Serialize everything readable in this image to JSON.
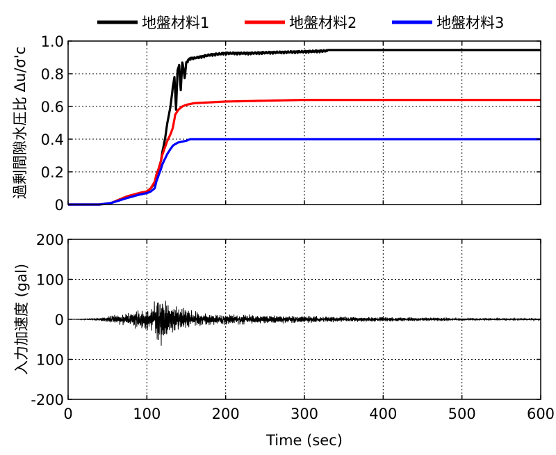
{
  "chart_data": [
    {
      "type": "line",
      "title": "",
      "xlabel": "",
      "ylabel": "過剰間隙水圧比 Δu/σ'c",
      "xlim": [
        0,
        600
      ],
      "ylim": [
        0,
        1.0
      ],
      "yticks": [
        "0",
        "0.2",
        "0.4",
        "0.6",
        "0.8",
        "1.0"
      ],
      "legend_position": "top",
      "series": [
        {
          "name": "地盤材料1",
          "color": "#000000",
          "x": [
            0,
            40,
            55,
            65,
            75,
            90,
            100,
            105,
            110,
            112,
            115,
            118,
            120,
            123,
            126,
            130,
            133,
            135,
            137,
            139,
            141,
            143,
            145,
            148,
            150,
            153,
            156,
            160,
            170,
            180,
            200,
            230,
            260,
            300,
            330,
            400,
            500,
            600
          ],
          "y": [
            0,
            0,
            0.01,
            0.03,
            0.05,
            0.07,
            0.08,
            0.1,
            0.13,
            0.18,
            0.22,
            0.27,
            0.33,
            0.4,
            0.5,
            0.6,
            0.72,
            0.78,
            0.58,
            0.82,
            0.86,
            0.7,
            0.88,
            0.78,
            0.87,
            0.89,
            0.9,
            0.9,
            0.91,
            0.92,
            0.93,
            0.93,
            0.935,
            0.94,
            0.945,
            0.945,
            0.945,
            0.945
          ]
        },
        {
          "name": "地盤材料2",
          "color": "#ff0000",
          "x": [
            0,
            40,
            55,
            65,
            75,
            90,
            100,
            105,
            110,
            112,
            115,
            118,
            120,
            123,
            126,
            130,
            133,
            136,
            140,
            145,
            150,
            160,
            180,
            200,
            250,
            300,
            400,
            500,
            600
          ],
          "y": [
            0,
            0,
            0.01,
            0.03,
            0.05,
            0.07,
            0.08,
            0.1,
            0.14,
            0.18,
            0.22,
            0.27,
            0.31,
            0.35,
            0.39,
            0.43,
            0.47,
            0.55,
            0.58,
            0.6,
            0.61,
            0.62,
            0.625,
            0.63,
            0.635,
            0.64,
            0.64,
            0.64,
            0.64
          ]
        },
        {
          "name": "地盤材料3",
          "color": "#0000ff",
          "x": [
            0,
            40,
            55,
            65,
            75,
            90,
            100,
            105,
            110,
            112,
            115,
            118,
            120,
            123,
            126,
            130,
            133,
            136,
            140,
            145,
            150,
            155,
            160,
            200,
            300,
            400,
            500,
            600
          ],
          "y": [
            0,
            0,
            0.01,
            0.025,
            0.04,
            0.06,
            0.07,
            0.08,
            0.1,
            0.14,
            0.18,
            0.22,
            0.25,
            0.28,
            0.31,
            0.34,
            0.36,
            0.37,
            0.38,
            0.385,
            0.39,
            0.4,
            0.4,
            0.4,
            0.4,
            0.4,
            0.4,
            0.4
          ]
        }
      ]
    },
    {
      "type": "line",
      "title": "",
      "xlabel": "Time (sec)",
      "ylabel": "入力加速度 (gal)",
      "xlim": [
        0,
        600
      ],
      "ylim": [
        -200,
        200
      ],
      "xticks": [
        "0",
        "100",
        "200",
        "300",
        "400",
        "500",
        "600"
      ],
      "yticks": [
        "200",
        "100",
        "0",
        "100",
        "-200"
      ],
      "series": [
        {
          "color": "#000000",
          "envelope": {
            "t": [
              0,
              20,
              40,
              60,
              80,
              100,
              110,
              115,
              120,
              125,
              130,
              140,
              150,
              160,
              180,
              200,
              250,
              300,
              350,
              400,
              500,
              600
            ],
            "amp": [
              0,
              1,
              3,
              10,
              18,
              25,
              40,
              55,
              60,
              45,
              35,
              30,
              25,
              18,
              14,
              12,
              10,
              8,
              6,
              5,
              3,
              2
            ]
          }
        }
      ]
    }
  ]
}
